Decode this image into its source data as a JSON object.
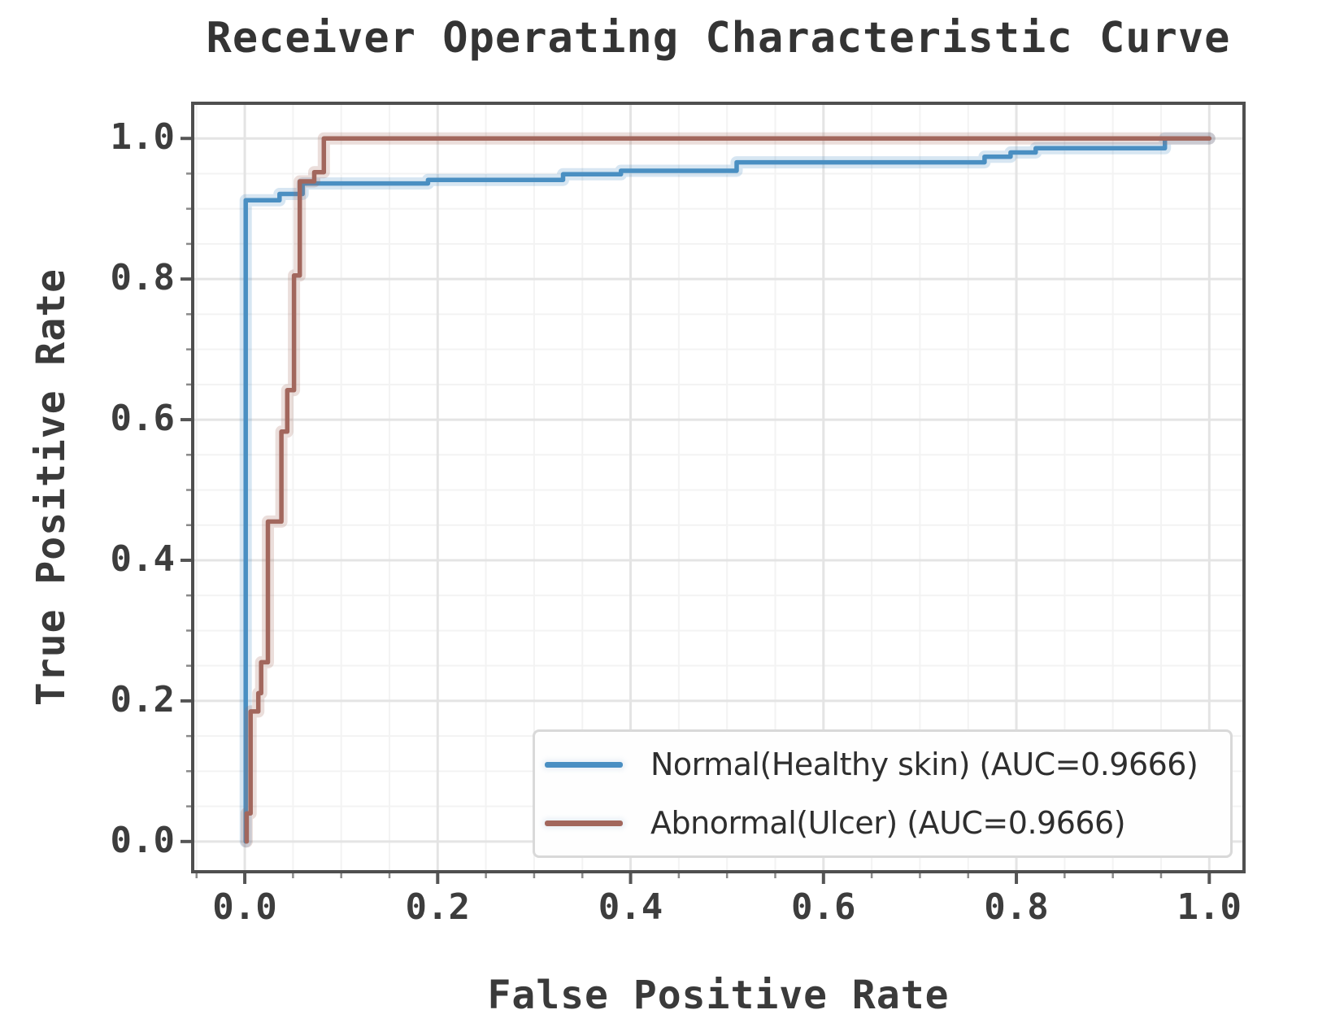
{
  "page": {
    "background": "#ffffff"
  },
  "chart_data": {
    "type": "line",
    "subtype": "roc-step-curves",
    "title": "Receiver Operating Characteristic Curve",
    "xlabel": "False Positive Rate",
    "ylabel": "True Positive Rate",
    "xlim": [
      -0.054,
      1.036
    ],
    "ylim": [
      -0.043,
      1.05
    ],
    "xticks": [
      0.0,
      0.2,
      0.4,
      0.6,
      0.8,
      1.0
    ],
    "yticks": [
      0.0,
      0.2,
      0.4,
      0.6,
      0.8,
      1.0
    ],
    "xtick_labels": [
      "0.0",
      "0.2",
      "0.4",
      "0.6",
      "0.8",
      "1.0"
    ],
    "ytick_labels": [
      "0.0",
      "0.2",
      "0.4",
      "0.6",
      "0.8",
      "1.0"
    ],
    "grid": {
      "major": true,
      "minor": true,
      "minor_step": 0.05
    },
    "frame_color": "#4f4f4f",
    "legend": {
      "position": "lower right",
      "entries": [
        {
          "label": "Normal(Healthy skin) (AUC=0.9666)",
          "color": "#4a8fc2"
        },
        {
          "label": "Abnormal(Ulcer) (AUC=0.9666)",
          "color": "#a2675d"
        }
      ]
    },
    "series": [
      {
        "name": "Normal(Healthy skin)",
        "auc": 0.9666,
        "color": "#4a8fc2",
        "points": [
          [
            0.001,
            0.0
          ],
          [
            0.001,
            0.912
          ],
          [
            0.036,
            0.912
          ],
          [
            0.036,
            0.921
          ],
          [
            0.06,
            0.921
          ],
          [
            0.06,
            0.936
          ],
          [
            0.19,
            0.936
          ],
          [
            0.19,
            0.941
          ],
          [
            0.33,
            0.941
          ],
          [
            0.33,
            0.949
          ],
          [
            0.39,
            0.949
          ],
          [
            0.39,
            0.954
          ],
          [
            0.51,
            0.954
          ],
          [
            0.51,
            0.966
          ],
          [
            0.767,
            0.966
          ],
          [
            0.767,
            0.974
          ],
          [
            0.794,
            0.974
          ],
          [
            0.794,
            0.98
          ],
          [
            0.82,
            0.98
          ],
          [
            0.82,
            0.986
          ],
          [
            0.954,
            0.986
          ],
          [
            0.954,
            1.0
          ],
          [
            1.0,
            1.0
          ]
        ]
      },
      {
        "name": "Abnormal(Ulcer)",
        "auc": 0.9666,
        "color": "#a2675d",
        "points": [
          [
            0.002,
            0.0
          ],
          [
            0.002,
            0.04
          ],
          [
            0.006,
            0.04
          ],
          [
            0.006,
            0.185
          ],
          [
            0.014,
            0.185
          ],
          [
            0.014,
            0.211
          ],
          [
            0.017,
            0.211
          ],
          [
            0.017,
            0.255
          ],
          [
            0.024,
            0.255
          ],
          [
            0.024,
            0.455
          ],
          [
            0.038,
            0.455
          ],
          [
            0.038,
            0.583
          ],
          [
            0.044,
            0.583
          ],
          [
            0.044,
            0.642
          ],
          [
            0.051,
            0.642
          ],
          [
            0.051,
            0.805
          ],
          [
            0.057,
            0.805
          ],
          [
            0.057,
            0.939
          ],
          [
            0.072,
            0.939
          ],
          [
            0.072,
            0.952
          ],
          [
            0.082,
            0.952
          ],
          [
            0.082,
            1.0
          ],
          [
            1.0,
            1.0
          ]
        ]
      }
    ]
  }
}
